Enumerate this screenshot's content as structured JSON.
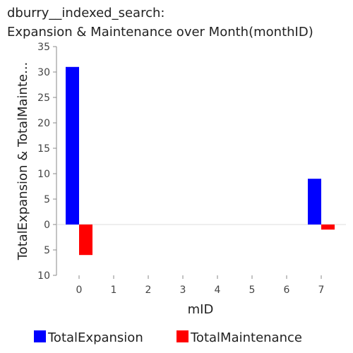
{
  "chart_data": {
    "type": "bar",
    "title_line1": "dburry__indexed_search:",
    "title_line2": "Expansion & Maintenance over Month(monthID)",
    "xlabel": "mID",
    "ylabel": "TotalExpansion & TotalMainte...",
    "categories": [
      "0",
      "1",
      "2",
      "3",
      "4",
      "5",
      "6",
      "7"
    ],
    "series": [
      {
        "name": "TotalExpansion",
        "color": "#0000ff",
        "values": [
          31,
          0,
          0,
          0,
          0,
          0,
          0,
          9
        ]
      },
      {
        "name": "TotalMaintenance",
        "color": "#ff0000",
        "values": [
          -6,
          0,
          0,
          0,
          0,
          0,
          0,
          -1
        ]
      }
    ],
    "ylim": [
      -10,
      35
    ],
    "yticks": [
      35,
      30,
      25,
      20,
      15,
      10,
      5,
      0,
      -5,
      -10
    ],
    "ytick_labels": [
      "35",
      "30",
      "25",
      "20",
      "15",
      "10",
      "5",
      "0",
      "5",
      "10"
    ],
    "grid": false,
    "legend_position": "bottom"
  }
}
